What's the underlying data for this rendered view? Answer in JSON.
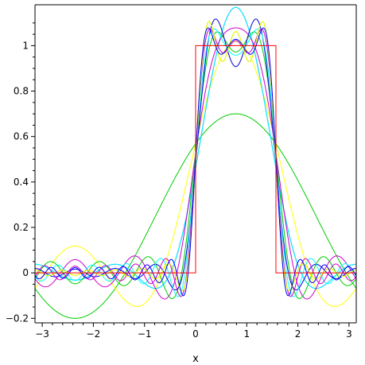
{
  "chart_data": {
    "type": "line",
    "title": "",
    "xlabel": "x",
    "ylabel": "",
    "xlim": [
      -3.14159,
      3.14159
    ],
    "ylim": [
      -0.22,
      1.18
    ],
    "grid": false,
    "legend": "none",
    "x_ticks": [
      {
        "value": -3,
        "label": "−3"
      },
      {
        "value": -2,
        "label": "−2"
      },
      {
        "value": -1,
        "label": "−1"
      },
      {
        "value": 0,
        "label": "0"
      },
      {
        "value": 1,
        "label": "1"
      },
      {
        "value": 2,
        "label": "2"
      },
      {
        "value": 3,
        "label": "3"
      }
    ],
    "y_ticks": [
      {
        "value": -0.2,
        "label": "−0.2"
      },
      {
        "value": 0,
        "label": "0"
      },
      {
        "value": 0.2,
        "label": "0.2"
      },
      {
        "value": 0.4,
        "label": "0.4"
      },
      {
        "value": 0.6,
        "label": "0.6"
      },
      {
        "value": 0.8,
        "label": "0.8"
      },
      {
        "value": 1,
        "label": "1"
      }
    ],
    "target_function": {
      "kind": "step",
      "x_low": 0,
      "x_high": 1.5708,
      "y_low": 0,
      "y_high": 1,
      "color": "#ff0000"
    },
    "series": [
      {
        "terms": 1,
        "color": "#00cc00"
      },
      {
        "terms": 2,
        "color": "#ffff00"
      },
      {
        "terms": 3,
        "color": "#0000ff"
      },
      {
        "terms": 4,
        "color": "#00ffff"
      },
      {
        "terms": 5,
        "color": "#cc00cc"
      },
      {
        "terms": 6,
        "color": "#00cc00"
      },
      {
        "terms": 7,
        "color": "#ffff00"
      },
      {
        "terms": 8,
        "color": "#0000ff"
      },
      {
        "terms": 9,
        "color": "#00ffff"
      },
      {
        "terms": 10,
        "color": "#cc00cc"
      },
      {
        "terms": 11,
        "color": "#00cc00"
      },
      {
        "terms": 12,
        "color": "#ffff00"
      },
      {
        "terms": 13,
        "color": "#0000ff"
      }
    ]
  }
}
